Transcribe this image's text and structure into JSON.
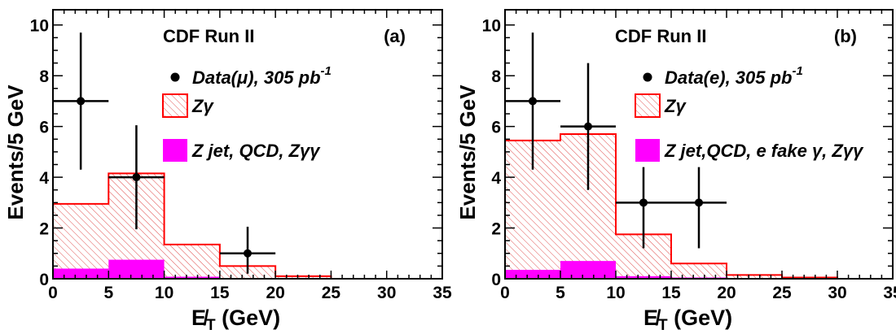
{
  "chart_data": [
    {
      "type": "histogram",
      "panel_label": "(a)",
      "title": "CDF Run II",
      "xlabel_main": "E̸",
      "xlabel_sub": "T",
      "xlabel_unit": " (GeV)",
      "ylabel": "Events/5 GeV",
      "xlim": [
        0,
        35
      ],
      "ylim": [
        0,
        10.6
      ],
      "x_ticks": [
        0,
        5,
        10,
        15,
        20,
        25,
        30,
        35
      ],
      "y_ticks": [
        0,
        2,
        4,
        6,
        8,
        10
      ],
      "bin_edges": [
        0,
        5,
        10,
        15,
        20,
        25,
        30,
        35
      ],
      "signal_total": [
        2.95,
        4.15,
        1.35,
        0.5,
        0.1,
        0,
        0
      ],
      "background": [
        0.4,
        0.75,
        0.08,
        0.03,
        0.01,
        0,
        0
      ],
      "data": [
        {
          "x": 2.5,
          "y": 7,
          "xerr": 2.5,
          "ylo": 4.3,
          "yhi": 9.7
        },
        {
          "x": 7.5,
          "y": 4,
          "xerr": 2.5,
          "ylo": 1.95,
          "yhi": 6.05
        },
        {
          "x": 17.5,
          "y": 1,
          "xerr": 2.5,
          "ylo": 0.2,
          "yhi": 2.05
        }
      ],
      "legend": {
        "data_label": "Data(μ), 305 pb",
        "data_sup": "-1",
        "signal_label": "Zγ",
        "bkg_label": "Z jet, QCD, Zγγ"
      }
    },
    {
      "type": "histogram",
      "panel_label": "(b)",
      "title": "CDF Run II",
      "xlabel_main": "E̸",
      "xlabel_sub": "T",
      "xlabel_unit": " (GeV)",
      "ylabel": "Events/5 GeV",
      "xlim": [
        0,
        35
      ],
      "ylim": [
        0,
        10.6
      ],
      "x_ticks": [
        0,
        5,
        10,
        15,
        20,
        25,
        30,
        35
      ],
      "y_ticks": [
        0,
        2,
        4,
        6,
        8,
        10
      ],
      "bin_edges": [
        0,
        5,
        10,
        15,
        20,
        25,
        30,
        35
      ],
      "signal_total": [
        5.45,
        5.7,
        1.75,
        0.6,
        0.15,
        0.05,
        0
      ],
      "background": [
        0.35,
        0.7,
        0.1,
        0.05,
        0.02,
        0,
        0
      ],
      "data": [
        {
          "x": 2.5,
          "y": 7,
          "xerr": 2.5,
          "ylo": 4.3,
          "yhi": 9.7
        },
        {
          "x": 7.5,
          "y": 6,
          "xerr": 2.5,
          "ylo": 3.5,
          "yhi": 8.5
        },
        {
          "x": 12.5,
          "y": 3,
          "xerr": 2.5,
          "ylo": 1.2,
          "yhi": 4.4
        },
        {
          "x": 17.5,
          "y": 3,
          "xerr": 2.5,
          "ylo": 1.2,
          "yhi": 4.4
        }
      ],
      "legend": {
        "data_label": "Data(e), 305 pb",
        "data_sup": "-1",
        "signal_label": "Zγ",
        "bkg_label": "Z jet,QCD, e fake γ, Zγγ"
      }
    }
  ],
  "colors": {
    "signal_line": "#ff0000",
    "signal_hatch": "#e05050",
    "background_fill": "#ff00ff",
    "data": "#000000"
  }
}
